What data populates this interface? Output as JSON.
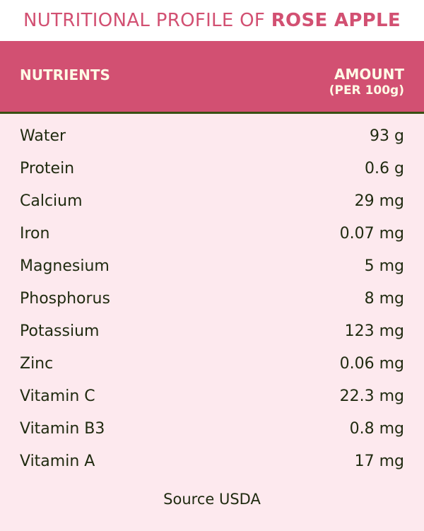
{
  "title": {
    "prefix": "NUTRITIONAL PROFILE OF ",
    "emphasis": "ROSE APPLE"
  },
  "header": {
    "nutrients": "NUTRIENTS",
    "amount": "AMOUNT",
    "amount_unit": "(PER 100g)"
  },
  "rows": [
    {
      "name": "Water",
      "amount": "93 g"
    },
    {
      "name": "Protein",
      "amount": "0.6 g"
    },
    {
      "name": "Calcium",
      "amount": "29 mg"
    },
    {
      "name": "Iron",
      "amount": "0.07 mg"
    },
    {
      "name": "Magnesium",
      "amount": "5 mg"
    },
    {
      "name": "Phosphorus",
      "amount": "8 mg"
    },
    {
      "name": "Potassium",
      "amount": "123 mg"
    },
    {
      "name": "Zinc",
      "amount": "0.06 mg"
    },
    {
      "name": "Vitamin C",
      "amount": "22.3 mg"
    },
    {
      "name": "Vitamin B3",
      "amount": "0.8 mg"
    },
    {
      "name": "Vitamin A",
      "amount": "17 mg"
    }
  ],
  "source": "Source USDA",
  "colors": {
    "accent": "#d25072",
    "background": "#fde9ee",
    "text": "#1f2a0f",
    "divider": "#3a4f12"
  }
}
